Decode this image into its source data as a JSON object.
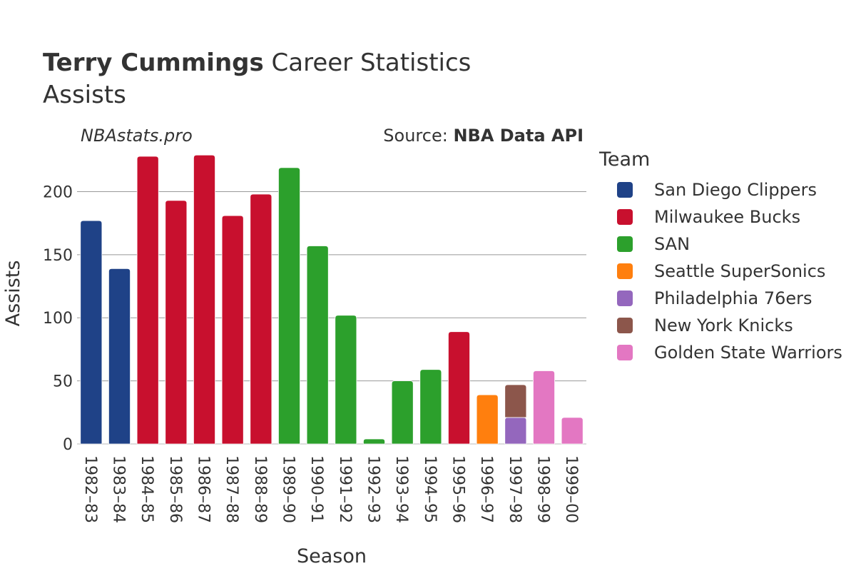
{
  "header": {
    "title_bold": "Terry Cummings",
    "title_rest": " Career Statistics",
    "subtitle": "Assists",
    "watermark": "NBAstats.pro",
    "source_prefix": "Source: ",
    "source_bold": "NBA Data API"
  },
  "legend": {
    "title": "Team",
    "items": [
      {
        "label": "San Diego Clippers",
        "color": "#1f4287"
      },
      {
        "label": "Milwaukee Bucks",
        "color": "#c8102e"
      },
      {
        "label": "SAN",
        "color": "#2ca02c"
      },
      {
        "label": "Seattle SuperSonics",
        "color": "#ff7f0e"
      },
      {
        "label": "Philadelphia 76ers",
        "color": "#9467bd"
      },
      {
        "label": "New York Knicks",
        "color": "#8c564b"
      },
      {
        "label": "Golden State Warriors",
        "color": "#e377c2"
      }
    ]
  },
  "chart_data": {
    "type": "bar",
    "stacked": true,
    "title": "Terry Cummings Career Statistics",
    "subtitle": "Assists",
    "xlabel": "Season",
    "ylabel": "Assists",
    "ylim": [
      0,
      228
    ],
    "yticks": [
      0,
      50,
      100,
      150,
      200
    ],
    "grid": true,
    "legend_position": "right",
    "categories": [
      "1982–83",
      "1983–84",
      "1984–85",
      "1985–86",
      "1986–87",
      "1987–88",
      "1988–89",
      "1989–90",
      "1990–91",
      "1991–92",
      "1992–93",
      "1993–94",
      "1994–95",
      "1995–96",
      "1996–97",
      "1997–98",
      "1998–99",
      "1999–00"
    ],
    "bars": [
      {
        "season": "1982–83",
        "segments": [
          {
            "team": "San Diego Clippers",
            "value": 177
          }
        ]
      },
      {
        "season": "1983–84",
        "segments": [
          {
            "team": "San Diego Clippers",
            "value": 139
          }
        ]
      },
      {
        "season": "1984–85",
        "segments": [
          {
            "team": "Milwaukee Bucks",
            "value": 228
          }
        ]
      },
      {
        "season": "1985–86",
        "segments": [
          {
            "team": "Milwaukee Bucks",
            "value": 193
          }
        ]
      },
      {
        "season": "1986–87",
        "segments": [
          {
            "team": "Milwaukee Bucks",
            "value": 229
          }
        ]
      },
      {
        "season": "1987–88",
        "segments": [
          {
            "team": "Milwaukee Bucks",
            "value": 181
          }
        ]
      },
      {
        "season": "1988–89",
        "segments": [
          {
            "team": "Milwaukee Bucks",
            "value": 198
          }
        ]
      },
      {
        "season": "1989–90",
        "segments": [
          {
            "team": "SAN",
            "value": 219
          }
        ]
      },
      {
        "season": "1990–91",
        "segments": [
          {
            "team": "SAN",
            "value": 157
          }
        ]
      },
      {
        "season": "1991–92",
        "segments": [
          {
            "team": "SAN",
            "value": 102
          }
        ]
      },
      {
        "season": "1992–93",
        "segments": [
          {
            "team": "SAN",
            "value": 4
          }
        ]
      },
      {
        "season": "1993–94",
        "segments": [
          {
            "team": "SAN",
            "value": 50
          }
        ]
      },
      {
        "season": "1994–95",
        "segments": [
          {
            "team": "SAN",
            "value": 59
          }
        ]
      },
      {
        "season": "1995–96",
        "segments": [
          {
            "team": "Milwaukee Bucks",
            "value": 89
          }
        ]
      },
      {
        "season": "1996–97",
        "segments": [
          {
            "team": "Seattle SuperSonics",
            "value": 39
          }
        ]
      },
      {
        "season": "1997–98",
        "segments": [
          {
            "team": "Philadelphia 76ers",
            "value": 21
          },
          {
            "team": "New York Knicks",
            "value": 26
          }
        ]
      },
      {
        "season": "1998–99",
        "segments": [
          {
            "team": "Golden State Warriors",
            "value": 58
          }
        ]
      },
      {
        "season": "1999–00",
        "segments": [
          {
            "team": "Golden State Warriors",
            "value": 21
          }
        ]
      }
    ]
  }
}
